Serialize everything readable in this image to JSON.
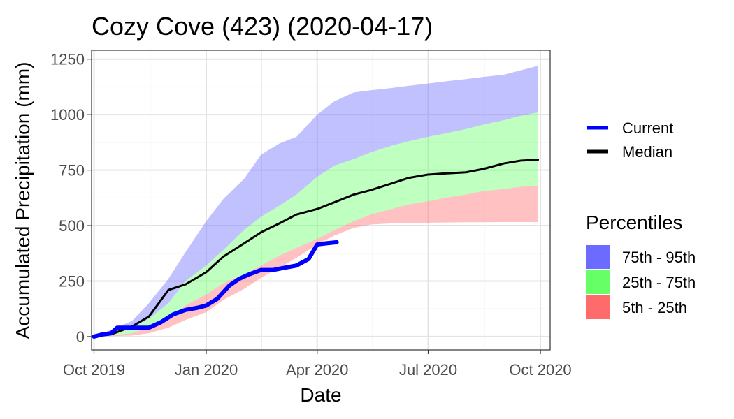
{
  "chart_data": {
    "type": "area",
    "title": "Cozy Cove (423) (2020-04-17)",
    "xlabel": "Date",
    "ylabel": "Accumulated Precipitation (mm)",
    "xlim": [
      "2019-09-29",
      "2020-10-09"
    ],
    "ylim": [
      -60,
      1290
    ],
    "x_ticks": [
      {
        "date": "2019-10-01",
        "label": "Oct 2019"
      },
      {
        "date": "2020-01-01",
        "label": "Jan 2020"
      },
      {
        "date": "2020-04-01",
        "label": "Apr 2020"
      },
      {
        "date": "2020-07-01",
        "label": "Jul 2020"
      },
      {
        "date": "2020-10-01",
        "label": "Oct 2020"
      }
    ],
    "y_ticks": [
      0,
      250,
      500,
      750,
      1000,
      1250
    ],
    "grid": true,
    "legend_position": "right",
    "lines_legend": [
      {
        "name": "Current",
        "color": "#0000ff"
      },
      {
        "name": "Median",
        "color": "#000000"
      }
    ],
    "percentiles_legend": {
      "title": "Percentiles",
      "items": [
        {
          "name": "75th - 95th",
          "color": "#6b6bff"
        },
        {
          "name": "25th - 75th",
          "color": "#66ff66"
        },
        {
          "name": "5th - 25th",
          "color": "#ff6b6b"
        }
      ]
    },
    "bands": {
      "dates": [
        "2019-10-01",
        "2019-10-15",
        "2019-11-01",
        "2019-11-15",
        "2019-12-01",
        "2019-12-15",
        "2020-01-01",
        "2020-01-15",
        "2020-02-01",
        "2020-02-15",
        "2020-03-01",
        "2020-03-15",
        "2020-04-01",
        "2020-04-15",
        "2020-05-01",
        "2020-05-15",
        "2020-06-01",
        "2020-06-15",
        "2020-07-01",
        "2020-07-15",
        "2020-08-01",
        "2020-08-15",
        "2020-09-01",
        "2020-09-15",
        "2020-09-29"
      ],
      "p5": [
        0,
        2,
        5,
        15,
        40,
        75,
        110,
        165,
        215,
        265,
        310,
        355,
        415,
        455,
        490,
        505,
        510,
        512,
        513,
        514,
        515,
        515,
        516,
        516,
        516
      ],
      "p25": [
        0,
        5,
        15,
        40,
        80,
        140,
        190,
        240,
        280,
        320,
        365,
        400,
        440,
        480,
        520,
        550,
        575,
        595,
        610,
        625,
        640,
        655,
        665,
        675,
        680
      ],
      "p75": [
        0,
        15,
        40,
        80,
        150,
        250,
        320,
        390,
        480,
        540,
        590,
        640,
        720,
        770,
        800,
        830,
        860,
        880,
        900,
        915,
        935,
        955,
        975,
        995,
        1010
      ],
      "p95": [
        0,
        30,
        70,
        150,
        260,
        380,
        520,
        620,
        710,
        820,
        870,
        900,
        1000,
        1060,
        1100,
        1110,
        1120,
        1130,
        1140,
        1150,
        1160,
        1170,
        1180,
        1200,
        1220
      ]
    },
    "series": [
      {
        "name": "Median",
        "color": "#000000",
        "dates": [
          "2019-10-01",
          "2019-10-15",
          "2019-11-01",
          "2019-11-15",
          "2019-12-01",
          "2019-12-15",
          "2020-01-01",
          "2020-01-15",
          "2020-02-01",
          "2020-02-15",
          "2020-03-01",
          "2020-03-15",
          "2020-04-01",
          "2020-04-15",
          "2020-05-01",
          "2020-05-15",
          "2020-06-01",
          "2020-06-15",
          "2020-07-01",
          "2020-07-15",
          "2020-08-01",
          "2020-08-15",
          "2020-09-01",
          "2020-09-15",
          "2020-09-29"
        ],
        "values": [
          0,
          10,
          45,
          90,
          210,
          235,
          290,
          360,
          420,
          470,
          510,
          550,
          575,
          605,
          640,
          660,
          690,
          715,
          730,
          735,
          740,
          755,
          780,
          793,
          797
        ]
      },
      {
        "name": "Current",
        "color": "#0000ff",
        "dates": [
          "2019-10-01",
          "2019-10-08",
          "2019-10-15",
          "2019-10-20",
          "2019-11-01",
          "2019-11-15",
          "2019-11-25",
          "2019-12-05",
          "2019-12-15",
          "2019-12-25",
          "2020-01-01",
          "2020-01-10",
          "2020-01-20",
          "2020-01-28",
          "2020-02-05",
          "2020-02-15",
          "2020-02-25",
          "2020-03-05",
          "2020-03-15",
          "2020-03-25",
          "2020-04-01",
          "2020-04-08",
          "2020-04-17"
        ],
        "values": [
          0,
          10,
          15,
          40,
          40,
          40,
          65,
          100,
          120,
          130,
          140,
          170,
          230,
          260,
          280,
          300,
          300,
          310,
          320,
          350,
          415,
          420,
          425
        ]
      }
    ]
  }
}
